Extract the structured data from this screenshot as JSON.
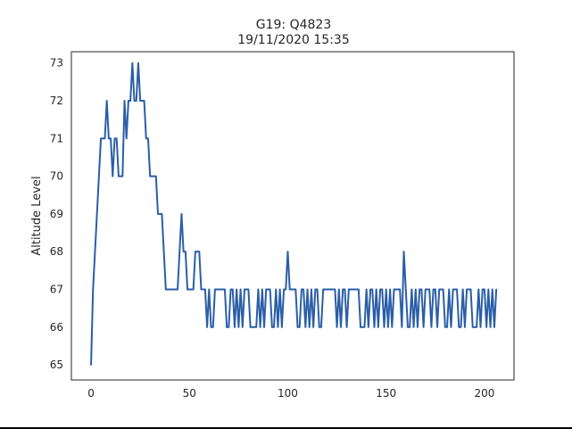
{
  "chart_data": {
    "type": "line",
    "title_line1": "G19: Q4823",
    "title_line2": "19/11/2020 15:35",
    "xlabel": "",
    "ylabel": "Altitude Level",
    "xlim": [
      -10,
      215
    ],
    "ylim": [
      64.6,
      73.3
    ],
    "xticks": [
      0,
      50,
      100,
      150,
      200
    ],
    "yticks": [
      65,
      66,
      67,
      68,
      69,
      70,
      71,
      72,
      73
    ],
    "grid": false,
    "line_color": "#2b5ea7",
    "series": [
      {
        "values": [
          65,
          67,
          68,
          69,
          70,
          71,
          71,
          71,
          72,
          71,
          71,
          70,
          71,
          71,
          70,
          70,
          70,
          72,
          71,
          72,
          72,
          73,
          72,
          72,
          73,
          72,
          72,
          72,
          71,
          71,
          70,
          70,
          70,
          70,
          69,
          69,
          69,
          68,
          67,
          67,
          67,
          67,
          67,
          67,
          67,
          68,
          69,
          68,
          68,
          67,
          67,
          67,
          67,
          68,
          68,
          68,
          67,
          67,
          67,
          66,
          67,
          66,
          66,
          67,
          67,
          67,
          67,
          67,
          67,
          66,
          66,
          67,
          67,
          66,
          67,
          66,
          67,
          66,
          67,
          67,
          67,
          66,
          66,
          66,
          66,
          67,
          66,
          67,
          66,
          67,
          67,
          67,
          66,
          66,
          67,
          66,
          67,
          66,
          67,
          67,
          68,
          67,
          67,
          67,
          67,
          66,
          66,
          67,
          67,
          66,
          67,
          66,
          67,
          66,
          67,
          67,
          66,
          66,
          67,
          67,
          67,
          67,
          67,
          67,
          67,
          66,
          67,
          66,
          67,
          67,
          66,
          67,
          67,
          67,
          67,
          67,
          67,
          66,
          66,
          66,
          67,
          66,
          67,
          67,
          66,
          67,
          66,
          67,
          67,
          66,
          67,
          66,
          67,
          66,
          67,
          67,
          67,
          67,
          66,
          68,
          67,
          66,
          66,
          67,
          66,
          67,
          66,
          67,
          67,
          66,
          67,
          67,
          67,
          66,
          67,
          67,
          66,
          67,
          67,
          67,
          66,
          66,
          67,
          66,
          67,
          67,
          67,
          66,
          66,
          67,
          66,
          67,
          67,
          67,
          66,
          66,
          66,
          67,
          66,
          67,
          67,
          66,
          67,
          66,
          67,
          66,
          67
        ]
      }
    ]
  }
}
